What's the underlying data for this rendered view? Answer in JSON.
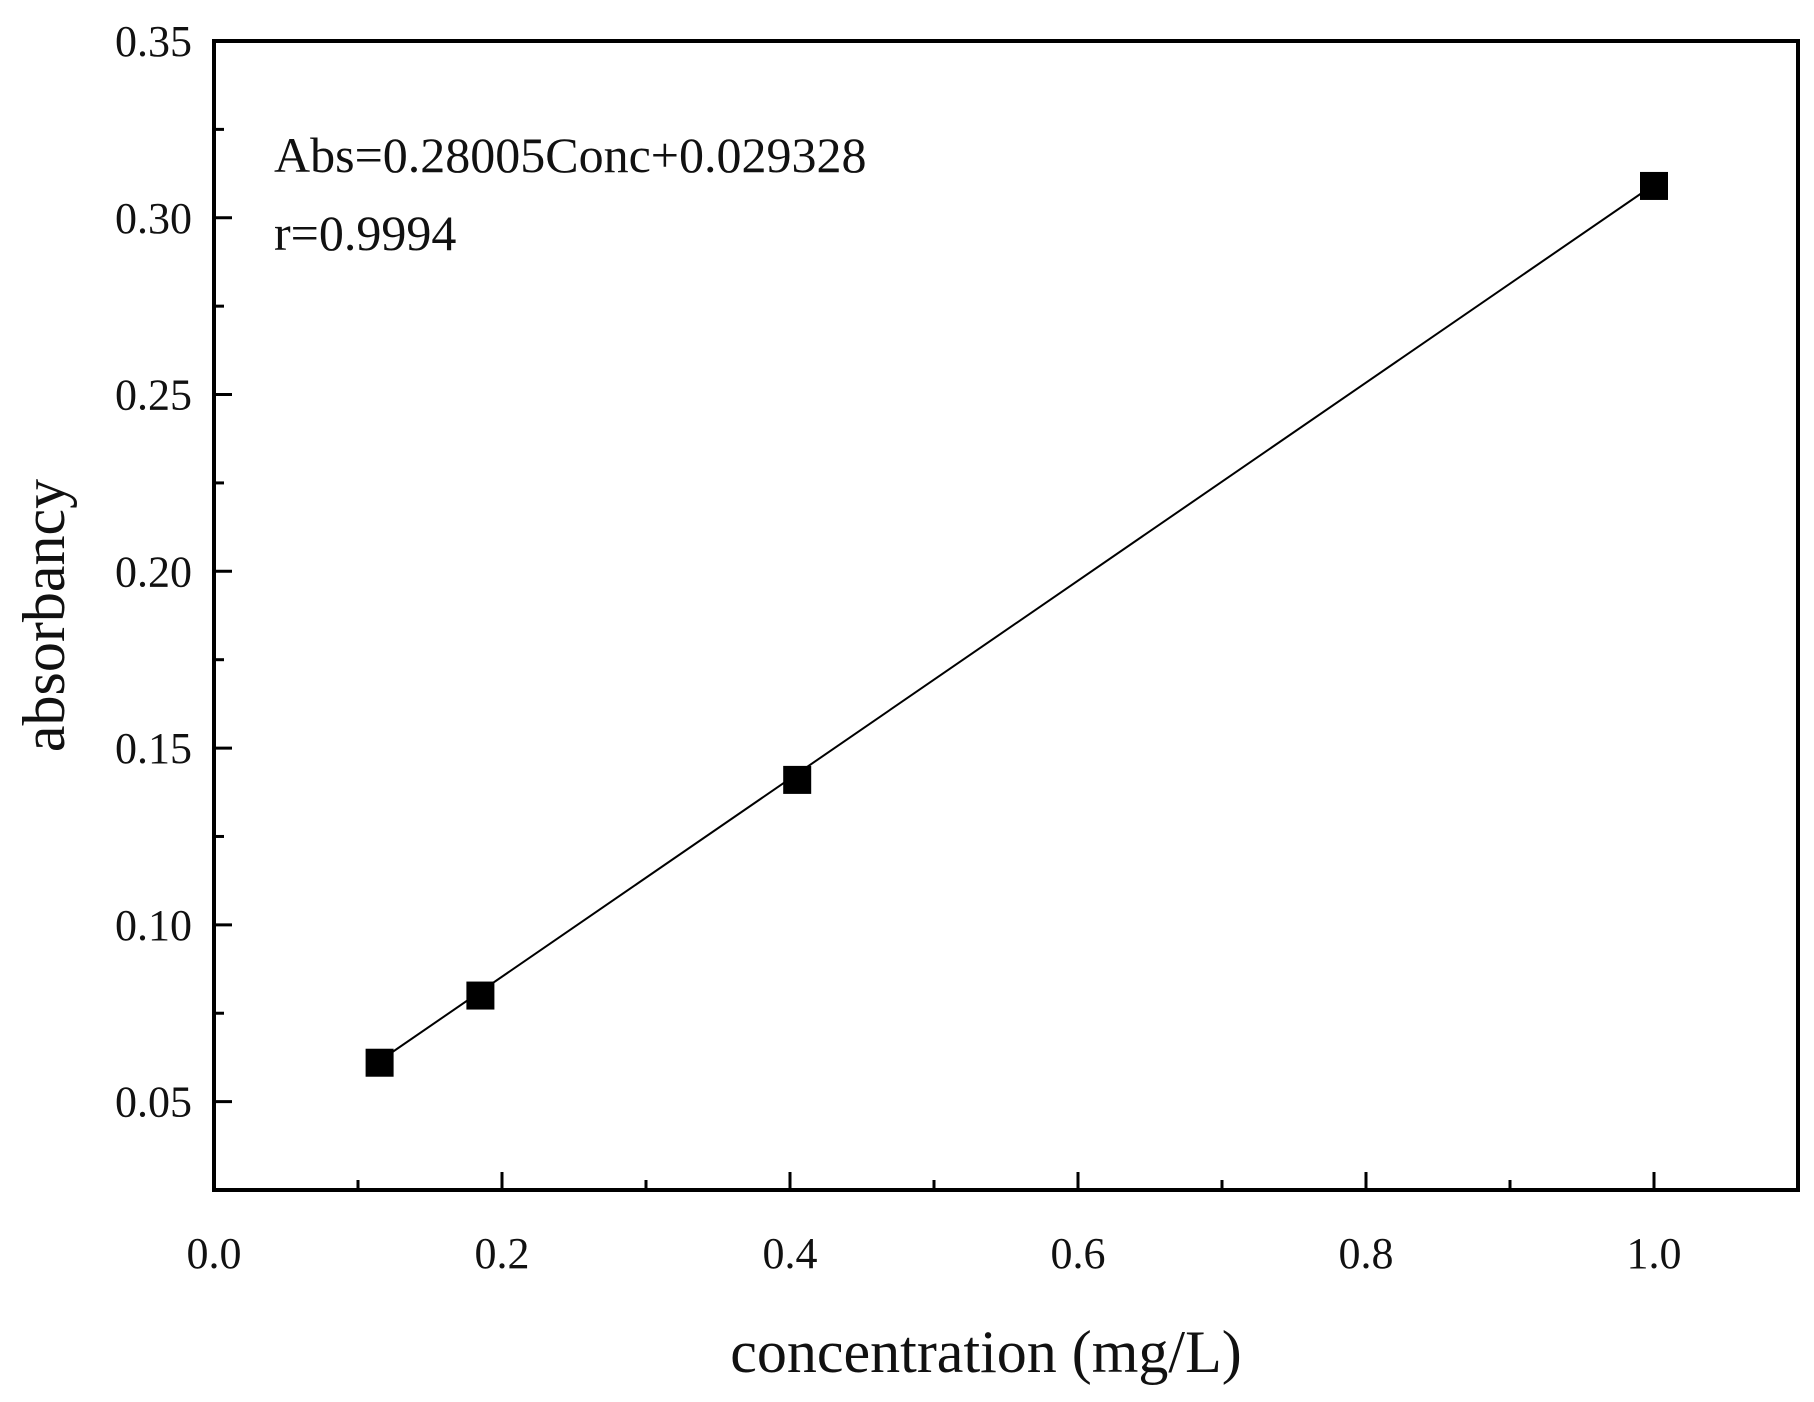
{
  "chart_data": {
    "type": "scatter",
    "title": "",
    "xlabel": "concentration (mg/L)",
    "ylabel": "absorbancy",
    "xlim": [
      0.0,
      1.1
    ],
    "ylim": [
      0.025,
      0.35
    ],
    "x_ticks": [
      "0.0",
      "0.2",
      "0.4",
      "0.6",
      "0.8",
      "1.0"
    ],
    "y_ticks": [
      "0.05",
      "0.10",
      "0.15",
      "0.20",
      "0.25",
      "0.30",
      "0.35"
    ],
    "grid": false,
    "series": [
      {
        "marker": "square",
        "color": "#000000",
        "x": [
          0.115,
          0.185,
          0.405,
          1.0
        ],
        "y": [
          0.061,
          0.08,
          0.141,
          0.309
        ]
      }
    ],
    "fit_line": {
      "slope": 0.28005,
      "intercept": 0.029328,
      "x_range": [
        0.115,
        1.0
      ],
      "color": "#000000"
    },
    "annotations": [
      "Abs=0.28005Conc+0.029328",
      "r=0.9994"
    ]
  }
}
